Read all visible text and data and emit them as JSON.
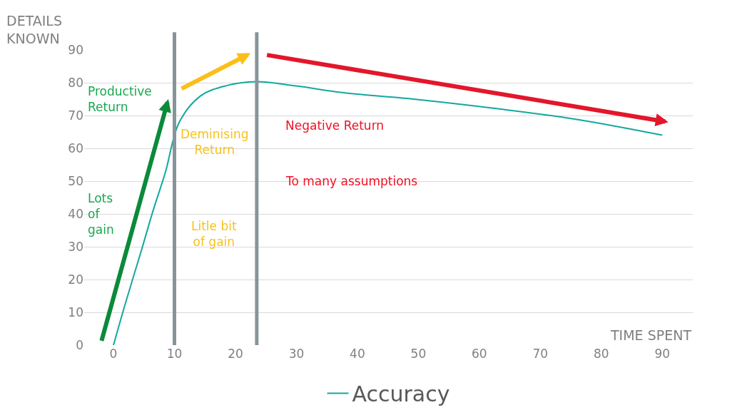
{
  "chart_data": {
    "type": "line",
    "xlabel": "TIME SPENT",
    "ylabel": "DETAILS\nKNOWN",
    "x": [
      0,
      2,
      4.6,
      6.5,
      8.5,
      10.8,
      14.3,
      18.3,
      23.4,
      30,
      37.5,
      49.2,
      63.3,
      76,
      90
    ],
    "series": [
      {
        "name": "Accuracy",
        "color": "#13a89e",
        "values": [
          0,
          13,
          29,
          41,
          52.6,
          68,
          76,
          79,
          80.3,
          79,
          77,
          75,
          72,
          68.8,
          64
        ]
      }
    ],
    "xlim": [
      -4.8,
      95
    ],
    "xticks": [
      0,
      10,
      20,
      30,
      40,
      50,
      60,
      70,
      80,
      90
    ],
    "ylim": [
      0,
      90
    ],
    "yticks": [
      0,
      10,
      20,
      30,
      40,
      50,
      60,
      70,
      80,
      90
    ],
    "grid": "y",
    "legend": "bottom",
    "marker": "none",
    "line_style": "solid",
    "ref_lines": [
      {
        "axis": "x",
        "value": 10,
        "color": "#87959b"
      },
      {
        "axis": "x",
        "value": 23.5,
        "color": "#87959b"
      }
    ],
    "annotations": [
      "Productive\nReturn",
      "Lots\nof\ngain",
      "Deminising\nReturn",
      "Litle bit\nof gain",
      "Negative Return",
      "To many assumptions"
    ]
  }
}
